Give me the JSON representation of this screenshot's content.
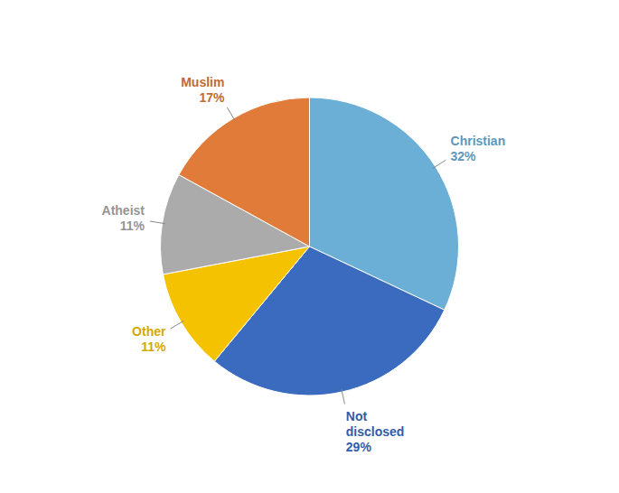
{
  "chart_data": {
    "type": "pie",
    "categories": [
      "Christian",
      "Not\ndisclosed",
      "Other",
      "Atheist",
      "Muslim"
    ],
    "values": [
      32,
      29,
      11,
      11,
      17
    ],
    "value_labels": [
      "32%",
      "29%",
      "11%",
      "11%",
      "17%"
    ],
    "colors": [
      "#6BAED6",
      "#3A6BBF",
      "#F5C200",
      "#ABABAB",
      "#E07B39"
    ],
    "data_labels": true
  }
}
